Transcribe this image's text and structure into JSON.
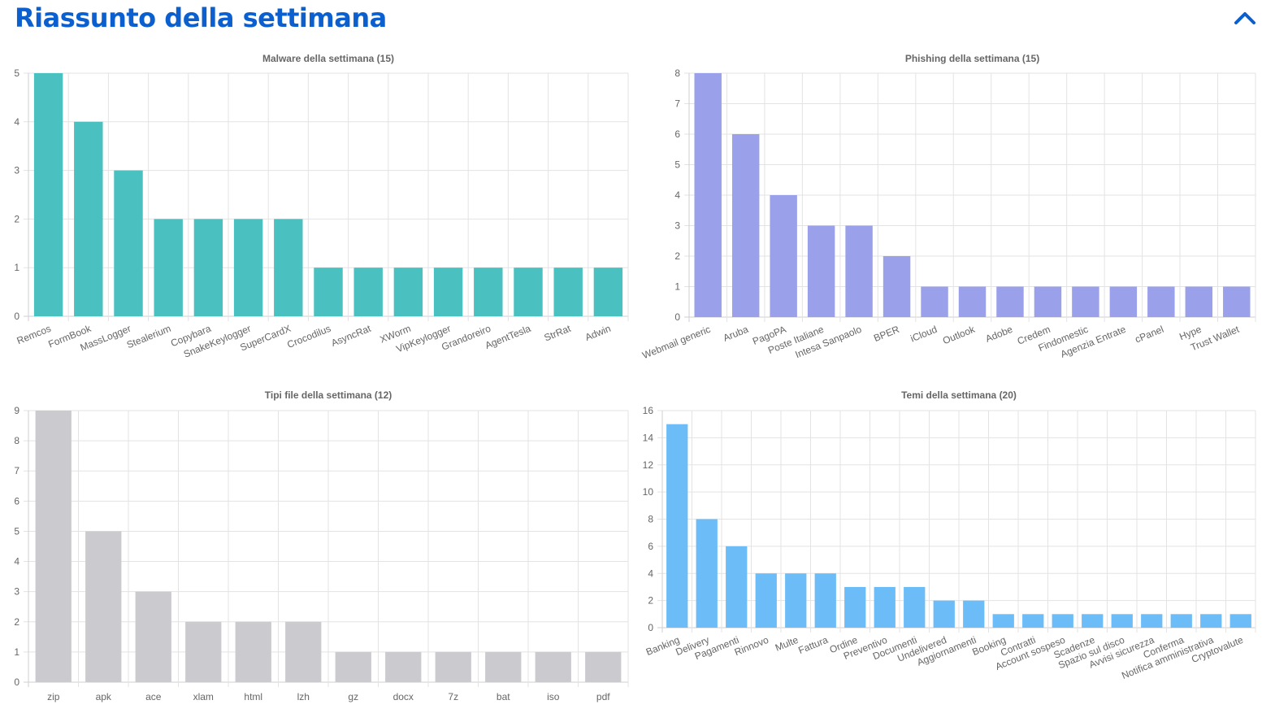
{
  "header": {
    "title": "Riassunto della settimana",
    "collapse_icon": "chevron-up-icon",
    "accent_color": "#0b5fcf"
  },
  "chart_data": [
    {
      "type": "bar",
      "title": "Malware della settimana (15)",
      "categories": [
        "Remcos",
        "FormBook",
        "MassLogger",
        "Stealerium",
        "Copybara",
        "SnakeKeylogger",
        "SuperCardX",
        "Crocodilus",
        "AsyncRat",
        "XWorm",
        "VipKeylogger",
        "Grandoreiro",
        "AgentTesla",
        "StrRat",
        "Adwin"
      ],
      "values": [
        5,
        4,
        3,
        2,
        2,
        2,
        2,
        1,
        1,
        1,
        1,
        1,
        1,
        1,
        1
      ],
      "ylim": [
        0,
        5
      ],
      "yticks": [
        0,
        1,
        2,
        3,
        4,
        5
      ],
      "color": "#4bc0c0",
      "grid": true
    },
    {
      "type": "bar",
      "title": "Phishing della settimana (15)",
      "categories": [
        "Webmail generic",
        "Aruba",
        "PagoPA",
        "Poste Italiane",
        "Intesa Sanpaolo",
        "BPER",
        "iCloud",
        "Outlook",
        "Adobe",
        "Credem",
        "Findomestic",
        "Agenzia Entrate",
        "cPanel",
        "Hype",
        "Trust Wallet"
      ],
      "values": [
        8,
        6,
        4,
        3,
        3,
        2,
        1,
        1,
        1,
        1,
        1,
        1,
        1,
        1,
        1
      ],
      "ylim": [
        0,
        8
      ],
      "yticks": [
        0,
        1,
        2,
        3,
        4,
        5,
        6,
        7,
        8
      ],
      "color": "#9aa1ea",
      "grid": true
    },
    {
      "type": "bar",
      "title": "Tipi file della settimana (12)",
      "categories": [
        "zip",
        "apk",
        "ace",
        "xlam",
        "html",
        "lzh",
        "gz",
        "docx",
        "7z",
        "bat",
        "iso",
        "pdf"
      ],
      "values": [
        9,
        5,
        3,
        2,
        2,
        2,
        1,
        1,
        1,
        1,
        1,
        1
      ],
      "ylim": [
        0,
        9
      ],
      "yticks": [
        0,
        1,
        2,
        3,
        4,
        5,
        6,
        7,
        8,
        9
      ],
      "color": "#cbcbcf",
      "grid": true
    },
    {
      "type": "bar",
      "title": "Temi della settimana (20)",
      "categories": [
        "Banking",
        "Delivery",
        "Pagamenti",
        "Rinnovo",
        "Multe",
        "Fattura",
        "Ordine",
        "Preventivo",
        "Documenti",
        "Undelivered",
        "Aggiornamenti",
        "Booking",
        "Contratti",
        "Account sospeso",
        "Scadenze",
        "Spazio sul disco",
        "Avvisi sicurezza",
        "Conferma",
        "Notifica amministrativa",
        "Cryptovalute"
      ],
      "values": [
        15,
        8,
        6,
        4,
        4,
        4,
        3,
        3,
        3,
        2,
        2,
        1,
        1,
        1,
        1,
        1,
        1,
        1,
        1,
        1
      ],
      "ylim": [
        0,
        16
      ],
      "yticks": [
        0,
        2,
        4,
        6,
        8,
        10,
        12,
        14,
        16
      ],
      "color": "#6cbdf7",
      "grid": true
    }
  ]
}
